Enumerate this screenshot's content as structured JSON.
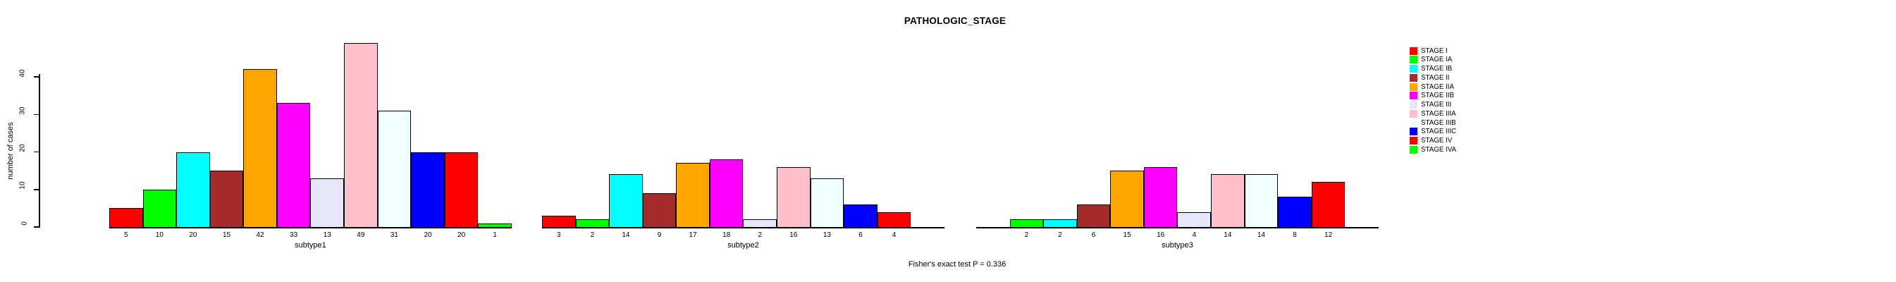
{
  "chart_data": {
    "type": "bar",
    "title": "PATHOLOGIC_STAGE",
    "ylabel": "number of cases",
    "yticks": [
      0,
      10,
      20,
      30,
      40
    ],
    "ylim": [
      0,
      49
    ],
    "grid": false,
    "legend_position": "right",
    "categories": [
      "STAGE I",
      "STAGE IA",
      "STAGE IB",
      "STAGE II",
      "STAGE IIA",
      "STAGE IIB",
      "STAGE III",
      "STAGE IIIA",
      "STAGE IIIB",
      "STAGE IIIC",
      "STAGE IV",
      "STAGE IVA"
    ],
    "colors": [
      "#FF0000",
      "#00FF00",
      "#00FFFF",
      "#A52A2A",
      "#FFA500",
      "#FF00FF",
      "#E6E6FA",
      "#FFC0CB",
      "#F0FFFF",
      "#0000FF",
      "#FF0000",
      "#00FF00"
    ],
    "groups": [
      {
        "label": "subtype1",
        "values": [
          5,
          10,
          20,
          15,
          42,
          33,
          13,
          49,
          31,
          20,
          20,
          1
        ]
      },
      {
        "label": "subtype2",
        "values": [
          3,
          2,
          14,
          9,
          17,
          18,
          2,
          16,
          13,
          6,
          4,
          null
        ]
      },
      {
        "label": "subtype3",
        "values": [
          null,
          2,
          2,
          6,
          15,
          16,
          4,
          14,
          14,
          8,
          12,
          null
        ]
      }
    ],
    "annotation": "Fisher's exact test P = 0.336"
  }
}
